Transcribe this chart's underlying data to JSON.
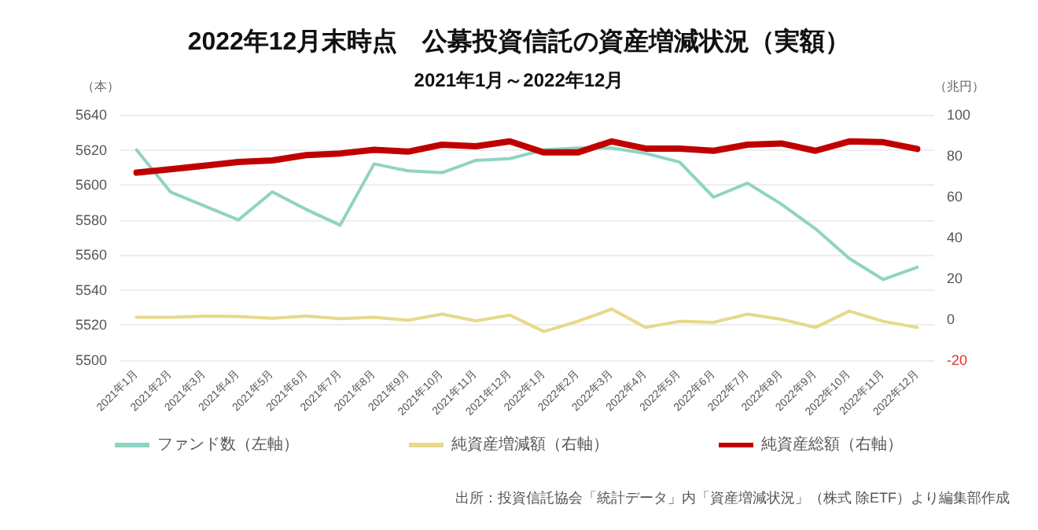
{
  "chart_data": {
    "type": "line",
    "title": "2022年12月末時点　公募投資信託の資産増減状況（実額）",
    "subtitle": "2021年1月～2022年12月",
    "ylabel": "（本）",
    "y2label": "（兆円）",
    "categories": [
      "2021年1月",
      "2021年2月",
      "2021年3月",
      "2021年4月",
      "2021年5月",
      "2021年6月",
      "2021年7月",
      "2021年8月",
      "2021年9月",
      "2021年10月",
      "2021年11月",
      "2021年12月",
      "2022年1月",
      "2022年2月",
      "2022年3月",
      "2022年4月",
      "2022年5月",
      "2022年6月",
      "2022年7月",
      "2022年8月",
      "2022年9月",
      "2022年10月",
      "2022年11月",
      "2022年12月"
    ],
    "series": [
      {
        "name": "ファンド数（左軸）",
        "color": "#8fd3c3",
        "values": [
          5620,
          5596,
          5588,
          5580,
          5596,
          5586,
          5577,
          5612,
          5608,
          5607,
          5614,
          5615,
          5620,
          5621,
          5621,
          5618,
          5613,
          5593,
          5601,
          5589,
          5575,
          5558,
          5546,
          5553
        ]
      },
      {
        "name": "純資産増減額（右軸）",
        "color": "#e6d98a",
        "axis": "y2",
        "values": [
          1,
          1,
          1.5,
          1.3,
          0.5,
          1.5,
          0.3,
          1,
          -0.5,
          2.5,
          -0.8,
          2,
          -6,
          -1,
          5,
          -4,
          -1,
          -1.5,
          2.5,
          0,
          -4,
          4,
          -1,
          -4
        ]
      },
      {
        "name": "純資産総額（右軸）",
        "color": "#c00000",
        "axis": "y2",
        "values": [
          71.7,
          73.4,
          75.1,
          76.9,
          77.7,
          80.3,
          81.1,
          82.9,
          82,
          85.4,
          84.6,
          87,
          81.6,
          81.6,
          87,
          83.5,
          83.5,
          82.4,
          85.4,
          86,
          82.4,
          87,
          86.6,
          83.3
        ]
      }
    ],
    "ylim": [
      5500,
      5640
    ],
    "yticks": [
      5500,
      5520,
      5540,
      5560,
      5580,
      5600,
      5620,
      5640
    ],
    "y2lim": [
      -20,
      100
    ],
    "y2ticks": [
      -20,
      0,
      20,
      40,
      60,
      80,
      100
    ],
    "grid": "y",
    "legend": "bottom",
    "marker": "none",
    "annotations": [
      "出所：投資信託協会「統計データ」内「資産増減状況」（株式 除ETF）より編集部作成"
    ]
  }
}
